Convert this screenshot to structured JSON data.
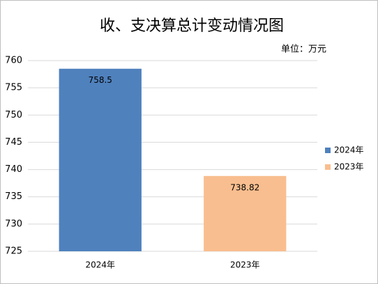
{
  "chart_data": {
    "type": "bar",
    "title": "收、支决算总计变动情况图",
    "unit": "单位：万元",
    "categories": [
      "2024年",
      "2023年"
    ],
    "series": [
      {
        "name": "2024年",
        "color": "#4f81bd",
        "values": [
          758.5,
          null
        ]
      },
      {
        "name": "2023年",
        "color": "#f9be8f",
        "values": [
          null,
          738.82
        ]
      }
    ],
    "ylim": [
      725,
      760
    ],
    "yticks": [
      725,
      730,
      735,
      740,
      745,
      750,
      755,
      760
    ],
    "grid": true
  }
}
